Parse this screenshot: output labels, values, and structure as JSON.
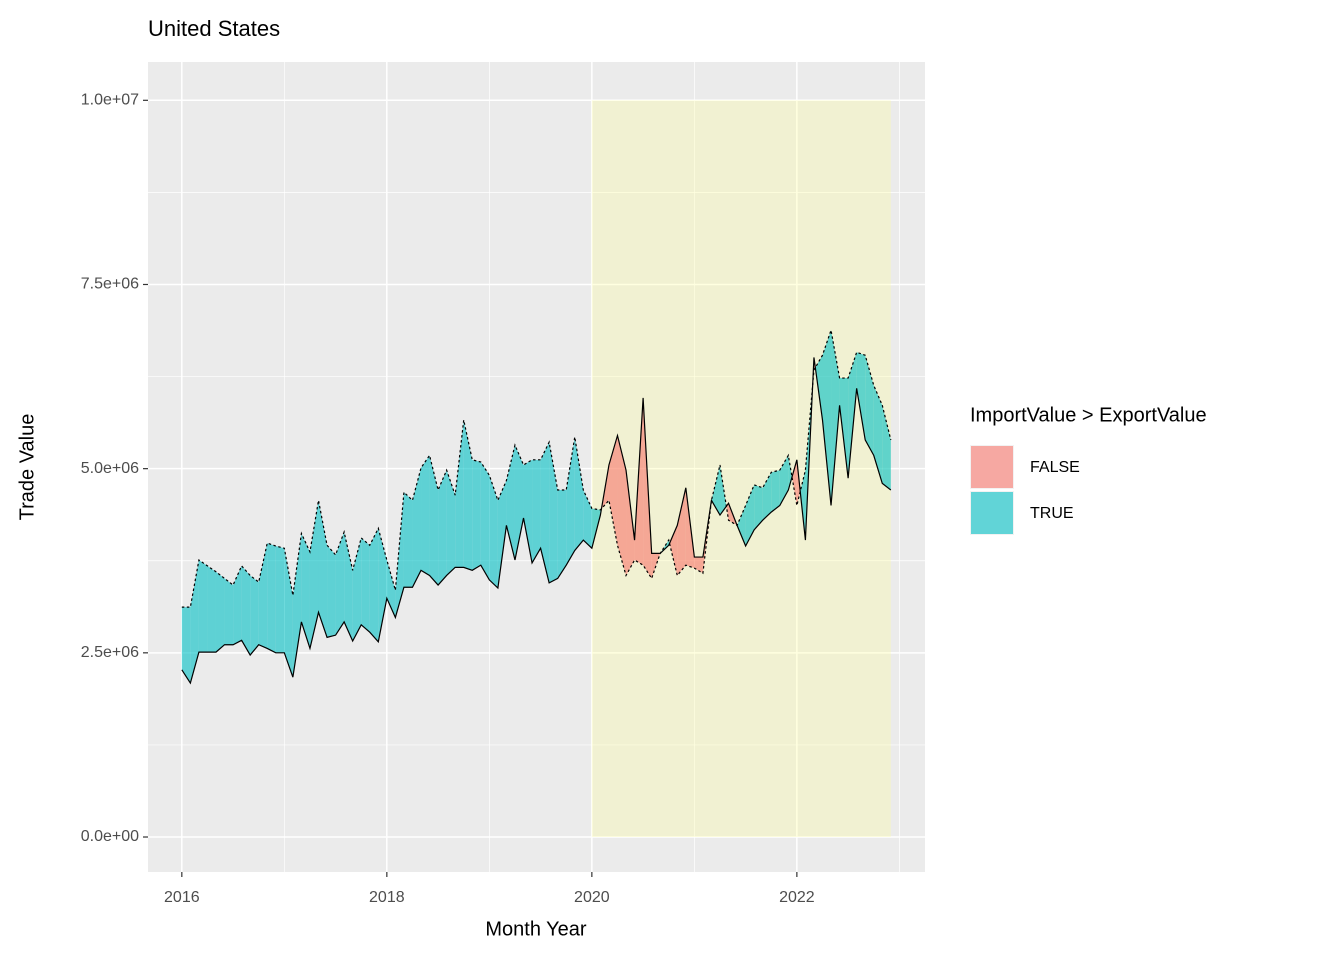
{
  "chart_data": {
    "type": "ribbon",
    "title": "United States",
    "x_label": "Month Year",
    "y_label": "Trade Value",
    "x": [
      2016,
      2016.0833,
      2016.1667,
      2016.25,
      2016.3333,
      2016.4167,
      2016.5,
      2016.5833,
      2016.6667,
      2016.75,
      2016.8333,
      2016.9167,
      2017,
      2017.0833,
      2017.1667,
      2017.25,
      2017.3333,
      2017.4167,
      2017.5,
      2017.5833,
      2017.6667,
      2017.75,
      2017.8333,
      2017.9167,
      2018,
      2018.0833,
      2018.1667,
      2018.25,
      2018.3333,
      2018.4167,
      2018.5,
      2018.5833,
      2018.6667,
      2018.75,
      2018.8333,
      2018.9167,
      2019,
      2019.0833,
      2019.1667,
      2019.25,
      2019.3333,
      2019.4167,
      2019.5,
      2019.5833,
      2019.6667,
      2019.75,
      2019.8333,
      2019.9167,
      2020,
      2020.0833,
      2020.1667,
      2020.25,
      2020.3333,
      2020.4167,
      2020.5,
      2020.5833,
      2020.6667,
      2020.75,
      2020.8333,
      2020.9167,
      2021,
      2021.0833,
      2021.1667,
      2021.25,
      2021.3333,
      2021.4167,
      2021.5,
      2021.5833,
      2021.6667,
      2021.75,
      2021.8333,
      2021.9167,
      2022,
      2022.0833,
      2022.1667,
      2022.25,
      2022.3333,
      2022.4167,
      2022.5,
      2022.5833,
      2022.6667,
      2022.75,
      2022.8333,
      2022.9167
    ],
    "series": [
      {
        "linetype": "dashed",
        "color": "#000000",
        "values": [
          3120000,
          3120000,
          3760000,
          3680000,
          3600000,
          3510000,
          3420000,
          3680000,
          3550000,
          3460000,
          3990000,
          3950000,
          3920000,
          3280000,
          4120000,
          3870000,
          4570000,
          3960000,
          3830000,
          4140000,
          3620000,
          4060000,
          3960000,
          4190000,
          3760000,
          3350000,
          4680000,
          4570000,
          5010000,
          5180000,
          4710000,
          4980000,
          4640000,
          5660000,
          5120000,
          5090000,
          4910000,
          4570000,
          4840000,
          5320000,
          5050000,
          5120000,
          5120000,
          5360000,
          4710000,
          4710000,
          5430000,
          4710000,
          4460000,
          4440000,
          4570000,
          3960000,
          3550000,
          3760000,
          3690000,
          3510000,
          3850000,
          4030000,
          3550000,
          3690000,
          3650000,
          3580000,
          4570000,
          5050000,
          4300000,
          4230000,
          4500000,
          4780000,
          4740000,
          4950000,
          4980000,
          5180000,
          4500000,
          4980000,
          6340000,
          6540000,
          6880000,
          6230000,
          6230000,
          6580000,
          6540000,
          6130000,
          5860000,
          5390000
        ]
      },
      {
        "linetype": "solid",
        "color": "#000000",
        "values": [
          2270000,
          2090000,
          2510000,
          2510000,
          2510000,
          2610000,
          2610000,
          2670000,
          2470000,
          2610000,
          2560000,
          2500000,
          2500000,
          2170000,
          2920000,
          2560000,
          3050000,
          2710000,
          2740000,
          2920000,
          2660000,
          2880000,
          2780000,
          2650000,
          3240000,
          2980000,
          3390000,
          3390000,
          3620000,
          3550000,
          3420000,
          3550000,
          3660000,
          3660000,
          3620000,
          3690000,
          3490000,
          3380000,
          4230000,
          3760000,
          4330000,
          3720000,
          3920000,
          3450000,
          3510000,
          3690000,
          3890000,
          4030000,
          3920000,
          4370000,
          5050000,
          5450000,
          4980000,
          4030000,
          5960000,
          3850000,
          3850000,
          3960000,
          4230000,
          4740000,
          3800000,
          3800000,
          4570000,
          4370000,
          4530000,
          4230000,
          3950000,
          4170000,
          4300000,
          4410000,
          4500000,
          4710000,
          5120000,
          4030000,
          6510000,
          5660000,
          4500000,
          5860000,
          4870000,
          6090000,
          5390000,
          5180000,
          4800000,
          4710000
        ]
      }
    ],
    "fill_legend": {
      "title": "ImportValue > ExportValue",
      "items": [
        {
          "label": "FALSE",
          "color": "#F8766D"
        },
        {
          "label": "TRUE",
          "color": "#00BFC4"
        }
      ]
    },
    "fill_opacity": 0.6,
    "highlight": {
      "xmin": 2020,
      "xmax": 2022.9167,
      "ymin": 0,
      "ymax": 10000000,
      "color": "#ffff99",
      "opacity": 0.3
    },
    "xlim": [
      2015.67,
      2023.25
    ],
    "ylim": [
      -475000,
      10520000
    ],
    "xticks": [
      2016,
      2018,
      2020,
      2022
    ],
    "yticks": [
      {
        "value": 0,
        "label": "0.0e+00"
      },
      {
        "value": 2500000,
        "label": "2.5e+06"
      },
      {
        "value": 5000000,
        "label": "5.0e+06"
      },
      {
        "value": 7500000,
        "label": "7.5e+06"
      },
      {
        "value": 10000000,
        "label": "1.0e+07"
      }
    ],
    "xminor": [
      2017,
      2019,
      2021,
      2023
    ],
    "yminor": [
      1250000,
      3750000,
      6250000,
      8750000
    ],
    "grid": true
  }
}
